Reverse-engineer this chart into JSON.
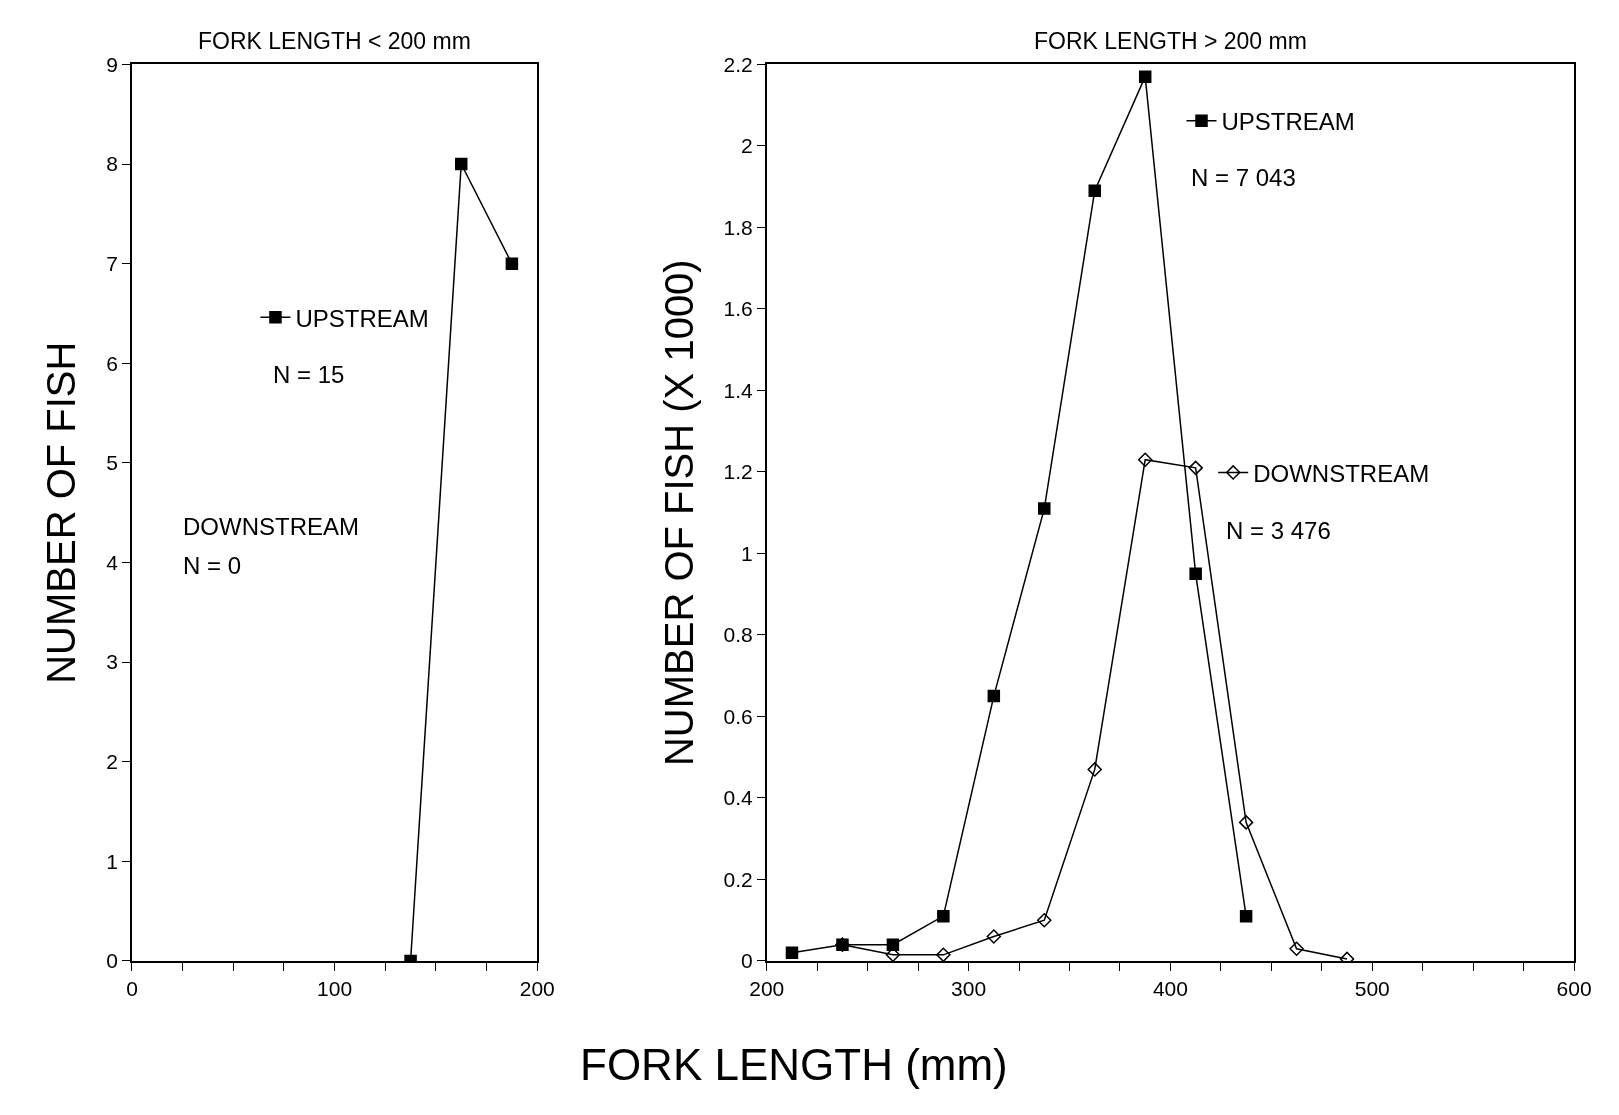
{
  "chart_data": [
    {
      "type": "line",
      "title": "FORK LENGTH < 200 mm",
      "ylabel": "NUMBER OF FISH",
      "xlabel": "FORK LENGTH (mm)",
      "x": [
        137.5,
        162.5,
        187.5
      ],
      "series": [
        {
          "name": "UPSTREAM",
          "color": "#000000",
          "marker": "square",
          "values": [
            0,
            8,
            7
          ]
        }
      ],
      "annotations": [
        "N = 15",
        "DOWNSTREAM",
        "N = 0"
      ],
      "xlim": [
        0,
        200
      ],
      "xticks": [
        0,
        {
          "value": 25,
          "label": null
        },
        {
          "value": 50,
          "label": null
        },
        {
          "value": 75,
          "label": null
        },
        100,
        {
          "value": 125,
          "label": null
        },
        {
          "value": 150,
          "label": null
        },
        {
          "value": 175,
          "label": null
        },
        200
      ],
      "ylim": [
        0,
        9
      ],
      "yticks": [
        0,
        1,
        2,
        3,
        4,
        5,
        6,
        7,
        8,
        9
      ],
      "legend": "left"
    },
    {
      "type": "line",
      "title": "FORK LENGTH > 200 mm",
      "ylabel": "NUMBER OF FISH (X 1000)",
      "series": [
        {
          "name": "UPSTREAM",
          "color": "#000000",
          "marker": "square",
          "x": [
            212.5,
            237.5,
            262.5,
            287.5,
            312.5,
            337.5,
            362.5,
            387.5,
            412.5,
            437.5
          ],
          "values": [
            0.02,
            0.04,
            0.04,
            0.11,
            0.65,
            1.11,
            1.89,
            2.17,
            0.95,
            0.11
          ]
        },
        {
          "name": "DOWNSTREAM",
          "color": "#000000",
          "marker": "diamond-open",
          "x": [
            237.5,
            262.5,
            287.5,
            312.5,
            337.5,
            362.5,
            387.5,
            412.5,
            437.5,
            462.5,
            487.5
          ],
          "values": [
            0.04,
            0.015,
            0.015,
            0.06,
            0.1,
            0.47,
            1.23,
            1.21,
            0.34,
            0.03,
            0.005
          ]
        }
      ],
      "annotations": [
        "N = 7 043",
        "N = 3 476"
      ],
      "xlim": [
        200,
        600
      ],
      "xticks": [
        200,
        {
          "value": 225,
          "label": null
        },
        {
          "value": 250,
          "label": null
        },
        {
          "value": 275,
          "label": null
        },
        300,
        {
          "value": 325,
          "label": null
        },
        {
          "value": 350,
          "label": null
        },
        {
          "value": 375,
          "label": null
        },
        400,
        {
          "value": 425,
          "label": null
        },
        {
          "value": 450,
          "label": null
        },
        {
          "value": 475,
          "label": null
        },
        500,
        {
          "value": 525,
          "label": null
        },
        {
          "value": 550,
          "label": null
        },
        {
          "value": 575,
          "label": null
        },
        600
      ],
      "ylim": [
        0,
        2.2
      ],
      "yticks": [
        0,
        0.2,
        0.4,
        0.6,
        0.8,
        1,
        1.2,
        1.4,
        1.6,
        1.8,
        2,
        2.2
      ],
      "legend": "right"
    }
  ]
}
